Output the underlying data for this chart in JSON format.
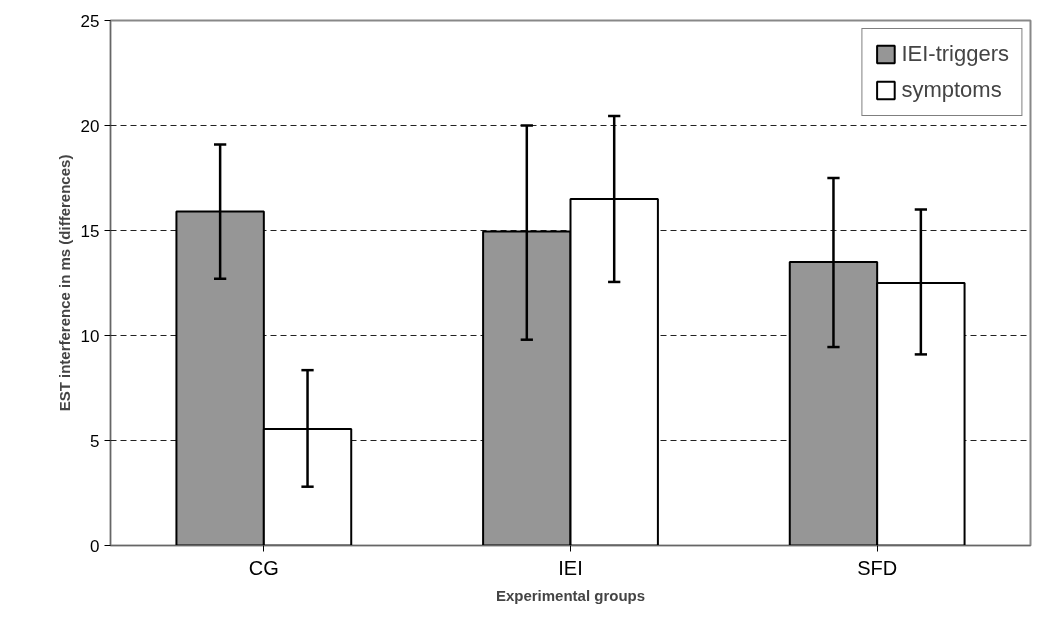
{
  "chart_data": {
    "type": "bar",
    "xlabel": "Experimental groups",
    "ylabel": "EST interference in ms (differences)",
    "categories": [
      "CG",
      "IEI",
      "SFD"
    ],
    "series": [
      {
        "name": "IEI-triggers",
        "color": "#969696",
        "values": [
          15.9,
          14.95,
          13.5
        ],
        "errors": [
          [
            12.7,
            19.1
          ],
          [
            9.8,
            20.0
          ],
          [
            9.45,
            17.5
          ]
        ]
      },
      {
        "name": "symptoms",
        "color": "#ffffff",
        "values": [
          5.55,
          16.5,
          12.5
        ],
        "errors": [
          [
            2.8,
            8.35
          ],
          [
            12.55,
            20.45
          ],
          [
            9.1,
            16.0
          ]
        ]
      }
    ],
    "ylim": [
      0,
      25
    ],
    "yticks": [
      0,
      5,
      10,
      15,
      20,
      25
    ],
    "grid": "y",
    "legend": "top right"
  }
}
